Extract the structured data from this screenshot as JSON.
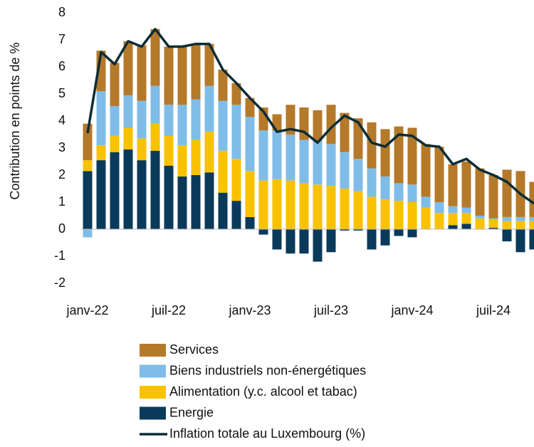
{
  "chart_data": {
    "type": "bar",
    "stacked": true,
    "y_label": "Contribution en points de %",
    "categories": [
      "janv-22",
      null,
      null,
      null,
      null,
      null,
      "juil-22",
      null,
      null,
      null,
      null,
      null,
      "janv-23",
      null,
      null,
      null,
      null,
      null,
      "juil-23",
      null,
      null,
      null,
      null,
      null,
      "janv-24",
      null,
      null,
      null,
      null,
      null,
      "juil-24",
      null,
      null,
      null
    ],
    "ylim": [
      -2,
      8
    ],
    "yticks": [
      -2,
      -1,
      0,
      1,
      2,
      3,
      4,
      5,
      6,
      7,
      8
    ],
    "series": [
      {
        "name": "Services",
        "color": "#b5792a",
        "values": [
          1.35,
          1.5,
          1.6,
          2.0,
          2.05,
          2.1,
          2.15,
          2.15,
          2.05,
          1.55,
          1.15,
          0.8,
          0.7,
          0.85,
          0.6,
          1.1,
          1.2,
          1.15,
          1.45,
          1.45,
          1.5,
          1.7,
          1.75,
          2.1,
          2.1,
          1.95,
          2.05,
          1.55,
          1.7,
          1.75,
          1.6,
          1.75,
          1.7,
          1.3
        ]
      },
      {
        "name": "Biens industriels non-énergétiques",
        "color": "#7fbde8",
        "values": [
          -0.3,
          2.0,
          1.1,
          1.2,
          1.4,
          1.4,
          1.15,
          1.5,
          1.5,
          1.7,
          1.85,
          2.0,
          2.0,
          1.85,
          1.8,
          1.7,
          1.6,
          1.6,
          1.55,
          1.35,
          1.2,
          1.05,
          0.85,
          0.65,
          0.65,
          0.4,
          0.4,
          0.25,
          0.2,
          0.1,
          0.05,
          0.15,
          0.15,
          0.15
        ]
      },
      {
        "name": "Alimentation (y.c. alcool et tabac)",
        "color": "#f9c200",
        "values": [
          0.4,
          0.55,
          0.6,
          0.8,
          0.8,
          1.0,
          1.1,
          1.15,
          1.3,
          1.5,
          1.55,
          1.55,
          1.7,
          1.8,
          1.85,
          1.8,
          1.7,
          1.65,
          1.6,
          1.5,
          1.4,
          1.2,
          1.1,
          1.05,
          1.0,
          0.8,
          0.6,
          0.45,
          0.4,
          0.4,
          0.3,
          0.3,
          0.3,
          0.3
        ]
      },
      {
        "name": "Energie",
        "color": "#0a3a5a",
        "values": [
          2.15,
          2.55,
          2.85,
          2.95,
          2.55,
          2.9,
          2.35,
          1.95,
          2.0,
          2.1,
          1.35,
          1.05,
          0.45,
          -0.2,
          -0.75,
          -0.9,
          -0.9,
          -1.2,
          -0.85,
          -0.05,
          -0.05,
          -0.75,
          -0.6,
          -0.25,
          -0.3,
          0.0,
          0.0,
          0.15,
          0.2,
          0.0,
          0.05,
          -0.45,
          -0.85,
          -0.75
        ]
      },
      {
        "name": "Inflation totale au Luxembourg (%)",
        "type": "line",
        "color": "#0b2d35",
        "values": [
          3.55,
          6.55,
          6.1,
          6.95,
          6.75,
          7.4,
          6.75,
          6.75,
          6.85,
          6.85,
          5.9,
          5.4,
          4.85,
          4.35,
          3.6,
          3.7,
          3.6,
          3.2,
          3.75,
          4.2,
          3.95,
          3.2,
          3.05,
          3.5,
          3.45,
          3.1,
          3.05,
          2.4,
          2.6,
          2.2,
          2.0,
          1.75,
          1.3,
          0.95
        ]
      }
    ]
  }
}
